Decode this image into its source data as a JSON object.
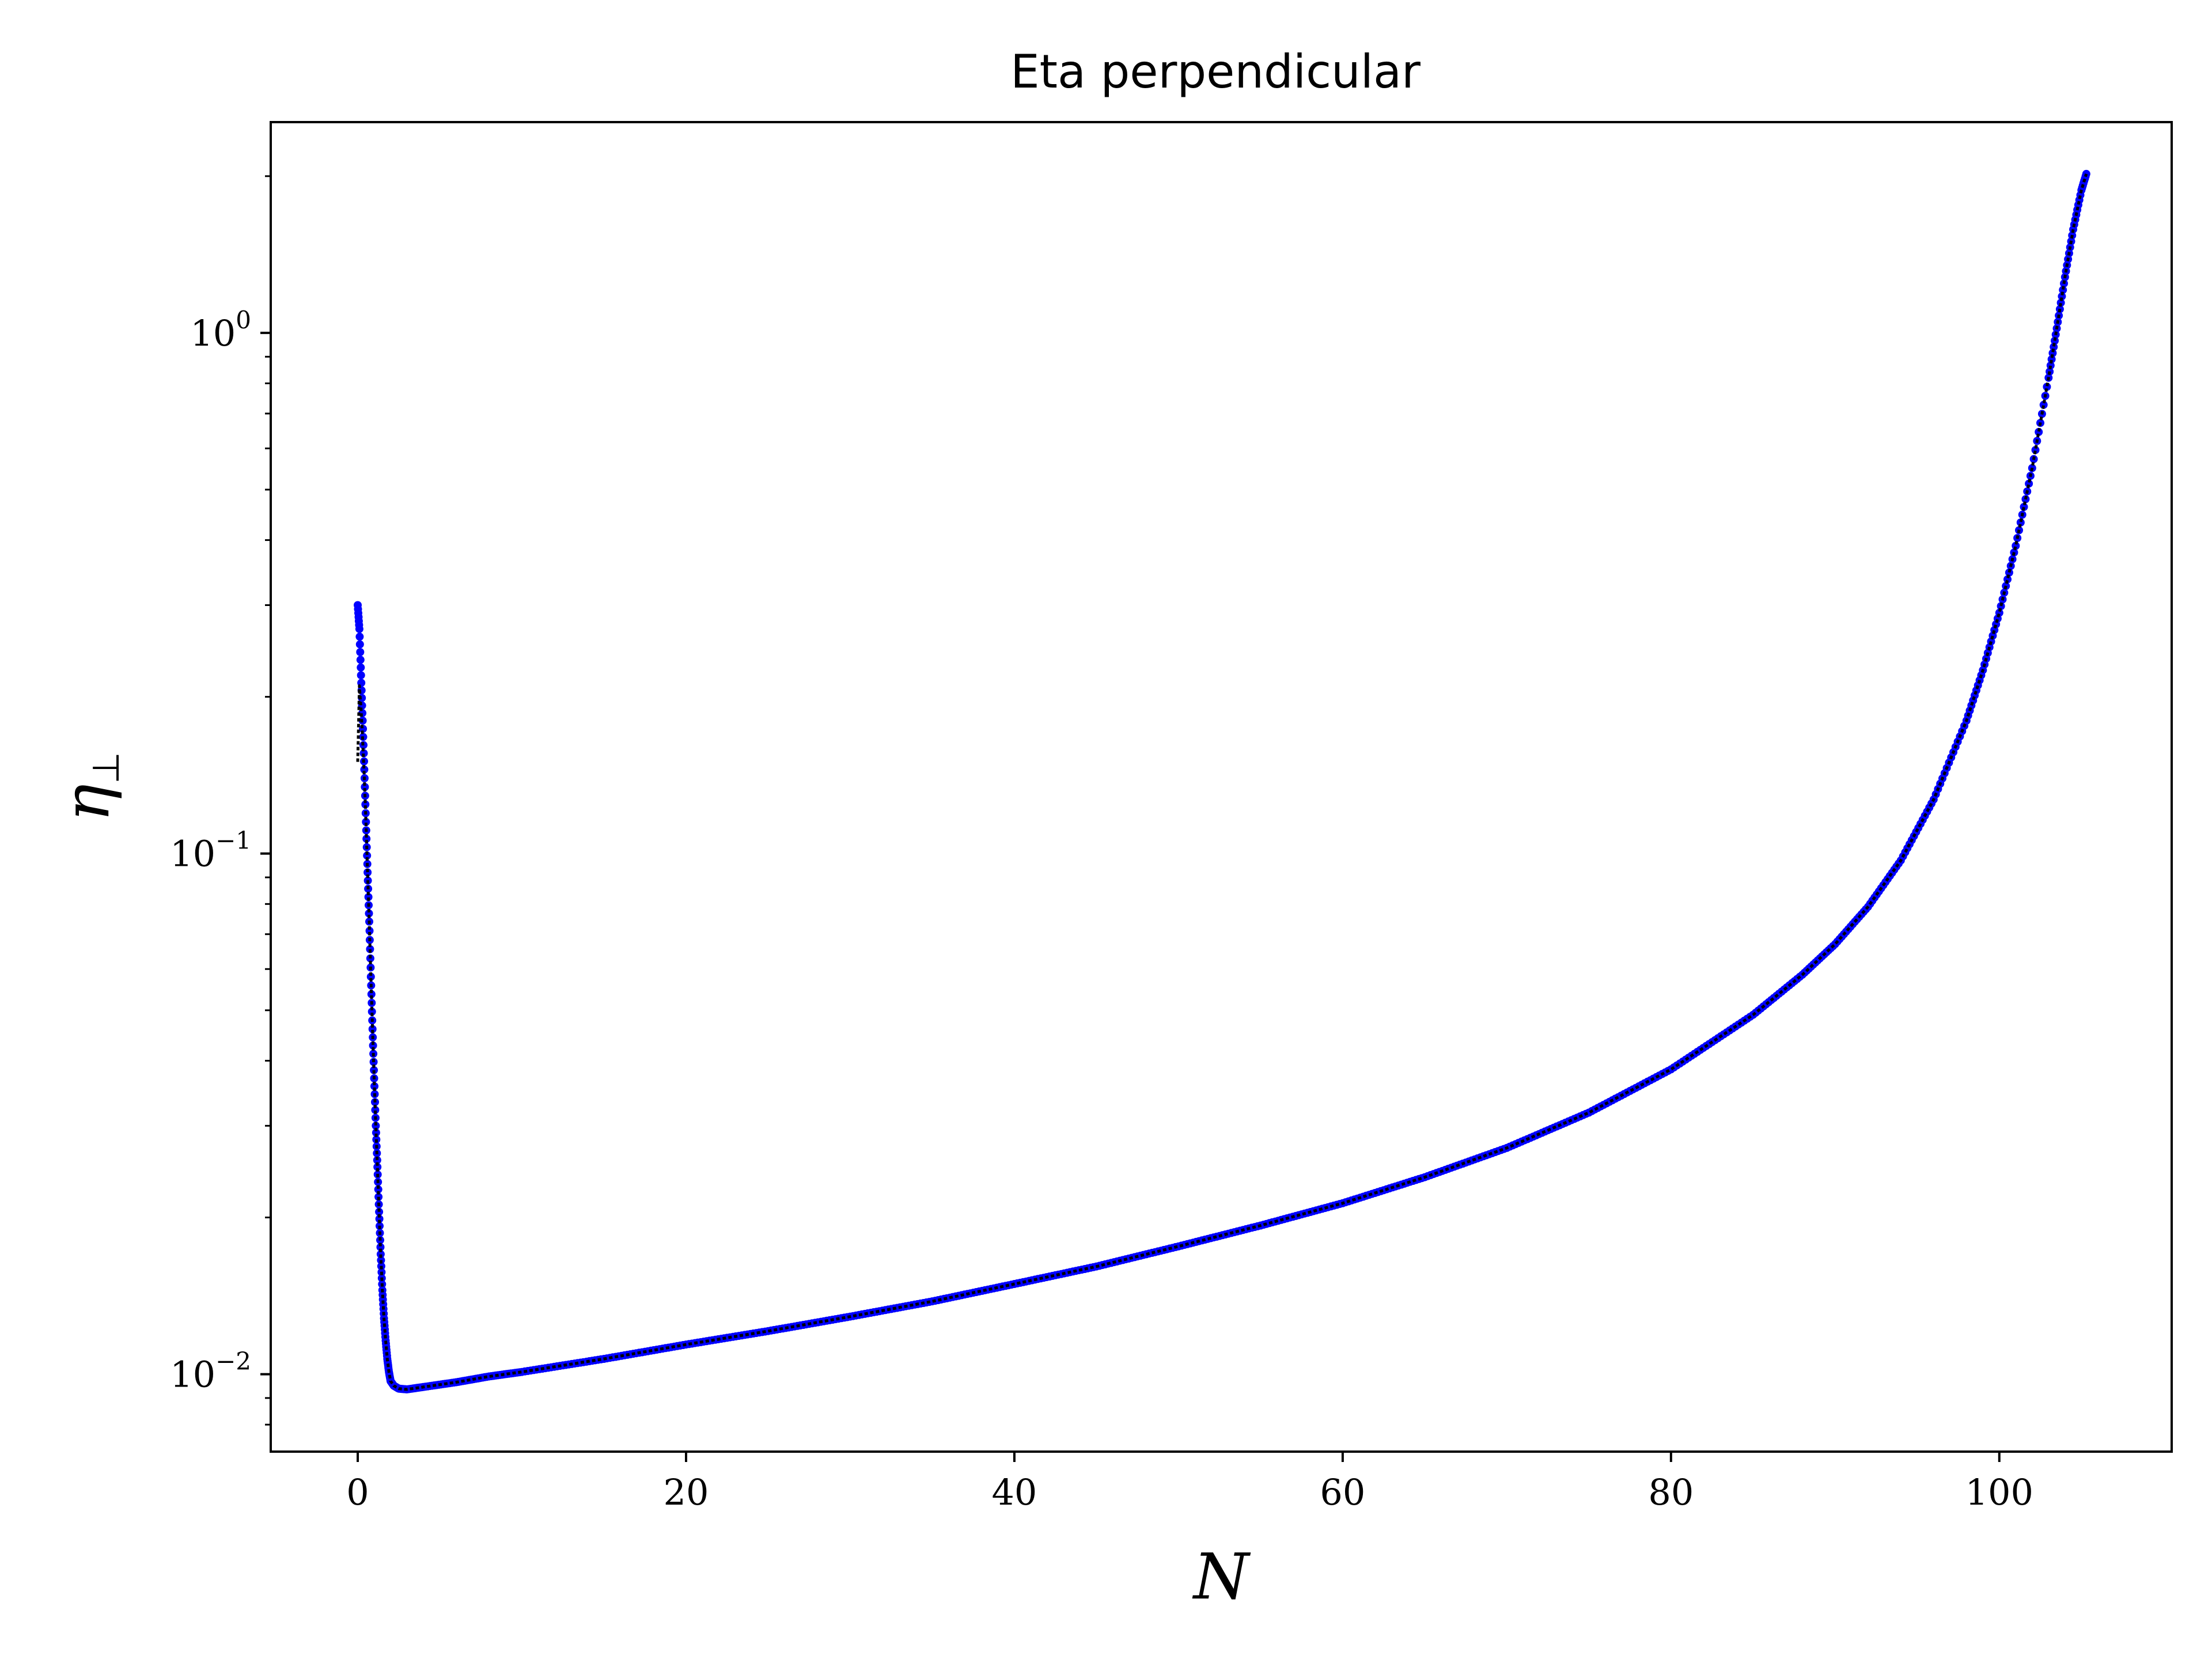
{
  "chart_data": {
    "type": "scatter",
    "title": "Eta perpendicular",
    "xlabel": "N",
    "ylabel": {
      "symbol": "η",
      "subscript": "⊥"
    },
    "xlim": [
      -5.3,
      110.5
    ],
    "ylim": [
      0.0071,
      2.54
    ],
    "yscale": "log",
    "grid": false,
    "x_ticks": [
      0,
      20,
      40,
      60,
      80,
      100
    ],
    "x_tick_labels": [
      "0",
      "20",
      "40",
      "60",
      "80",
      "100"
    ],
    "y_ticks": [
      0.01,
      0.1,
      1
    ],
    "y_tick_labels": [
      {
        "base": "10",
        "exp": "−2"
      },
      {
        "base": "10",
        "exp": "−1"
      },
      {
        "base": "10",
        "exp": "0"
      }
    ],
    "series": [
      {
        "color": "#0000ff",
        "style": "points",
        "points": [
          [
            0.0,
            0.3
          ],
          [
            0.1,
            0.27
          ],
          [
            0.2,
            0.22
          ],
          [
            0.3,
            0.18
          ],
          [
            0.4,
            0.145
          ],
          [
            0.5,
            0.115
          ],
          [
            0.6,
            0.092
          ],
          [
            0.7,
            0.074
          ],
          [
            0.8,
            0.058
          ],
          [
            0.9,
            0.046
          ],
          [
            1.0,
            0.037
          ],
          [
            1.1,
            0.03
          ],
          [
            1.2,
            0.025
          ],
          [
            1.3,
            0.0205
          ],
          [
            1.4,
            0.017
          ],
          [
            1.5,
            0.0145
          ],
          [
            1.6,
            0.0128
          ],
          [
            1.7,
            0.0116
          ],
          [
            1.8,
            0.0107
          ],
          [
            1.9,
            0.0101
          ],
          [
            2.0,
            0.0097
          ],
          [
            2.2,
            0.0095
          ],
          [
            2.5,
            0.00938
          ],
          [
            3.0,
            0.00935
          ],
          [
            4.0,
            0.00945
          ],
          [
            6.0,
            0.00965
          ],
          [
            8.0,
            0.0099
          ],
          [
            10.0,
            0.0101
          ],
          [
            15.0,
            0.0107
          ],
          [
            20.0,
            0.0114
          ],
          [
            25.0,
            0.0121
          ],
          [
            30.0,
            0.0129
          ],
          [
            35.0,
            0.0138
          ],
          [
            40.0,
            0.0149
          ],
          [
            45.0,
            0.0161
          ],
          [
            50.0,
            0.0176
          ],
          [
            55.0,
            0.0193
          ],
          [
            60.0,
            0.0213
          ],
          [
            65.0,
            0.0239
          ],
          [
            70.0,
            0.0272
          ],
          [
            75.0,
            0.0318
          ],
          [
            80.0,
            0.0385
          ],
          [
            85.0,
            0.049
          ],
          [
            88.0,
            0.0585
          ],
          [
            90.0,
            0.067
          ],
          [
            92.0,
            0.079
          ],
          [
            94.0,
            0.097
          ],
          [
            96.0,
            0.127
          ],
          [
            98.0,
            0.18
          ],
          [
            99.0,
            0.225
          ],
          [
            100.0,
            0.29
          ],
          [
            101.0,
            0.39
          ],
          [
            102.0,
            0.55
          ],
          [
            103.0,
            0.82
          ],
          [
            103.5,
            1.02
          ],
          [
            104.0,
            1.28
          ],
          [
            104.5,
            1.58
          ],
          [
            105.0,
            1.88
          ],
          [
            105.3,
            2.02
          ]
        ]
      },
      {
        "color": "#000000",
        "style": "line",
        "points": [
          [
            0.0,
            0.15
          ],
          [
            0.1,
            0.21
          ],
          [
            0.2,
            0.19
          ],
          [
            0.3,
            0.165
          ],
          [
            0.4,
            0.14
          ],
          [
            0.5,
            0.115
          ],
          [
            0.6,
            0.092
          ],
          [
            0.7,
            0.074
          ],
          [
            0.8,
            0.058
          ],
          [
            0.9,
            0.046
          ],
          [
            1.0,
            0.037
          ],
          [
            1.1,
            0.03
          ],
          [
            1.2,
            0.025
          ],
          [
            1.3,
            0.0205
          ],
          [
            1.4,
            0.017
          ],
          [
            1.5,
            0.0145
          ],
          [
            1.6,
            0.0128
          ],
          [
            1.7,
            0.0116
          ],
          [
            1.8,
            0.0107
          ],
          [
            1.9,
            0.0101
          ],
          [
            2.0,
            0.0097
          ],
          [
            2.2,
            0.0095
          ],
          [
            2.5,
            0.00938
          ],
          [
            3.0,
            0.00935
          ],
          [
            4.0,
            0.00945
          ],
          [
            6.0,
            0.00965
          ],
          [
            8.0,
            0.0099
          ],
          [
            10.0,
            0.0101
          ],
          [
            15.0,
            0.0107
          ],
          [
            20.0,
            0.0114
          ],
          [
            25.0,
            0.0121
          ],
          [
            30.0,
            0.0129
          ],
          [
            35.0,
            0.0138
          ],
          [
            40.0,
            0.0149
          ],
          [
            45.0,
            0.0161
          ],
          [
            50.0,
            0.0176
          ],
          [
            55.0,
            0.0193
          ],
          [
            60.0,
            0.0213
          ],
          [
            65.0,
            0.0239
          ],
          [
            70.0,
            0.0272
          ],
          [
            75.0,
            0.0318
          ],
          [
            80.0,
            0.0385
          ],
          [
            85.0,
            0.049
          ],
          [
            88.0,
            0.0585
          ],
          [
            90.0,
            0.067
          ],
          [
            92.0,
            0.079
          ],
          [
            94.0,
            0.097
          ],
          [
            96.0,
            0.127
          ],
          [
            98.0,
            0.18
          ],
          [
            99.0,
            0.225
          ],
          [
            100.0,
            0.29
          ],
          [
            101.0,
            0.39
          ],
          [
            102.0,
            0.55
          ],
          [
            103.0,
            0.82
          ],
          [
            103.5,
            1.02
          ],
          [
            104.0,
            1.28
          ],
          [
            104.5,
            1.58
          ],
          [
            105.0,
            1.88
          ],
          [
            105.3,
            2.02
          ]
        ]
      }
    ]
  }
}
